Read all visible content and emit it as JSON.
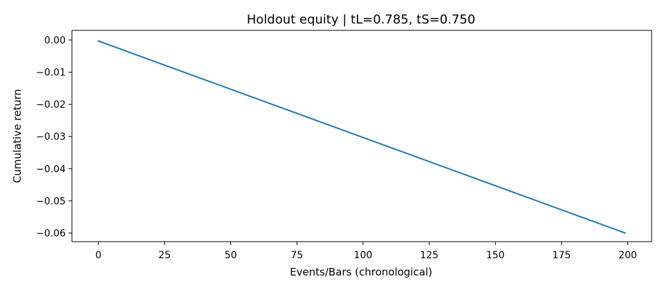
{
  "chart_data": {
    "type": "line",
    "title": "Holdout equity | tL=0.785, tS=0.750",
    "xlabel": "Events/Bars (chronological)",
    "ylabel": "Cumulative return",
    "xlim": [
      -10,
      209
    ],
    "ylim": [
      -0.0627,
      0.003
    ],
    "xticks": [
      0,
      25,
      50,
      75,
      100,
      125,
      150,
      175,
      200
    ],
    "xtick_labels": [
      "0",
      "25",
      "50",
      "75",
      "100",
      "125",
      "150",
      "175",
      "200"
    ],
    "yticks": [
      0.0,
      -0.01,
      -0.02,
      -0.03,
      -0.04,
      -0.05,
      -0.06
    ],
    "ytick_labels": [
      "0.00",
      "−0.01",
      "−0.02",
      "−0.03",
      "−0.04",
      "−0.05",
      "−0.06"
    ],
    "grid": false,
    "series": [
      {
        "color": "#1f77b4",
        "x": [
          0,
          199
        ],
        "y": [
          -0.0003,
          -0.06
        ]
      }
    ]
  }
}
